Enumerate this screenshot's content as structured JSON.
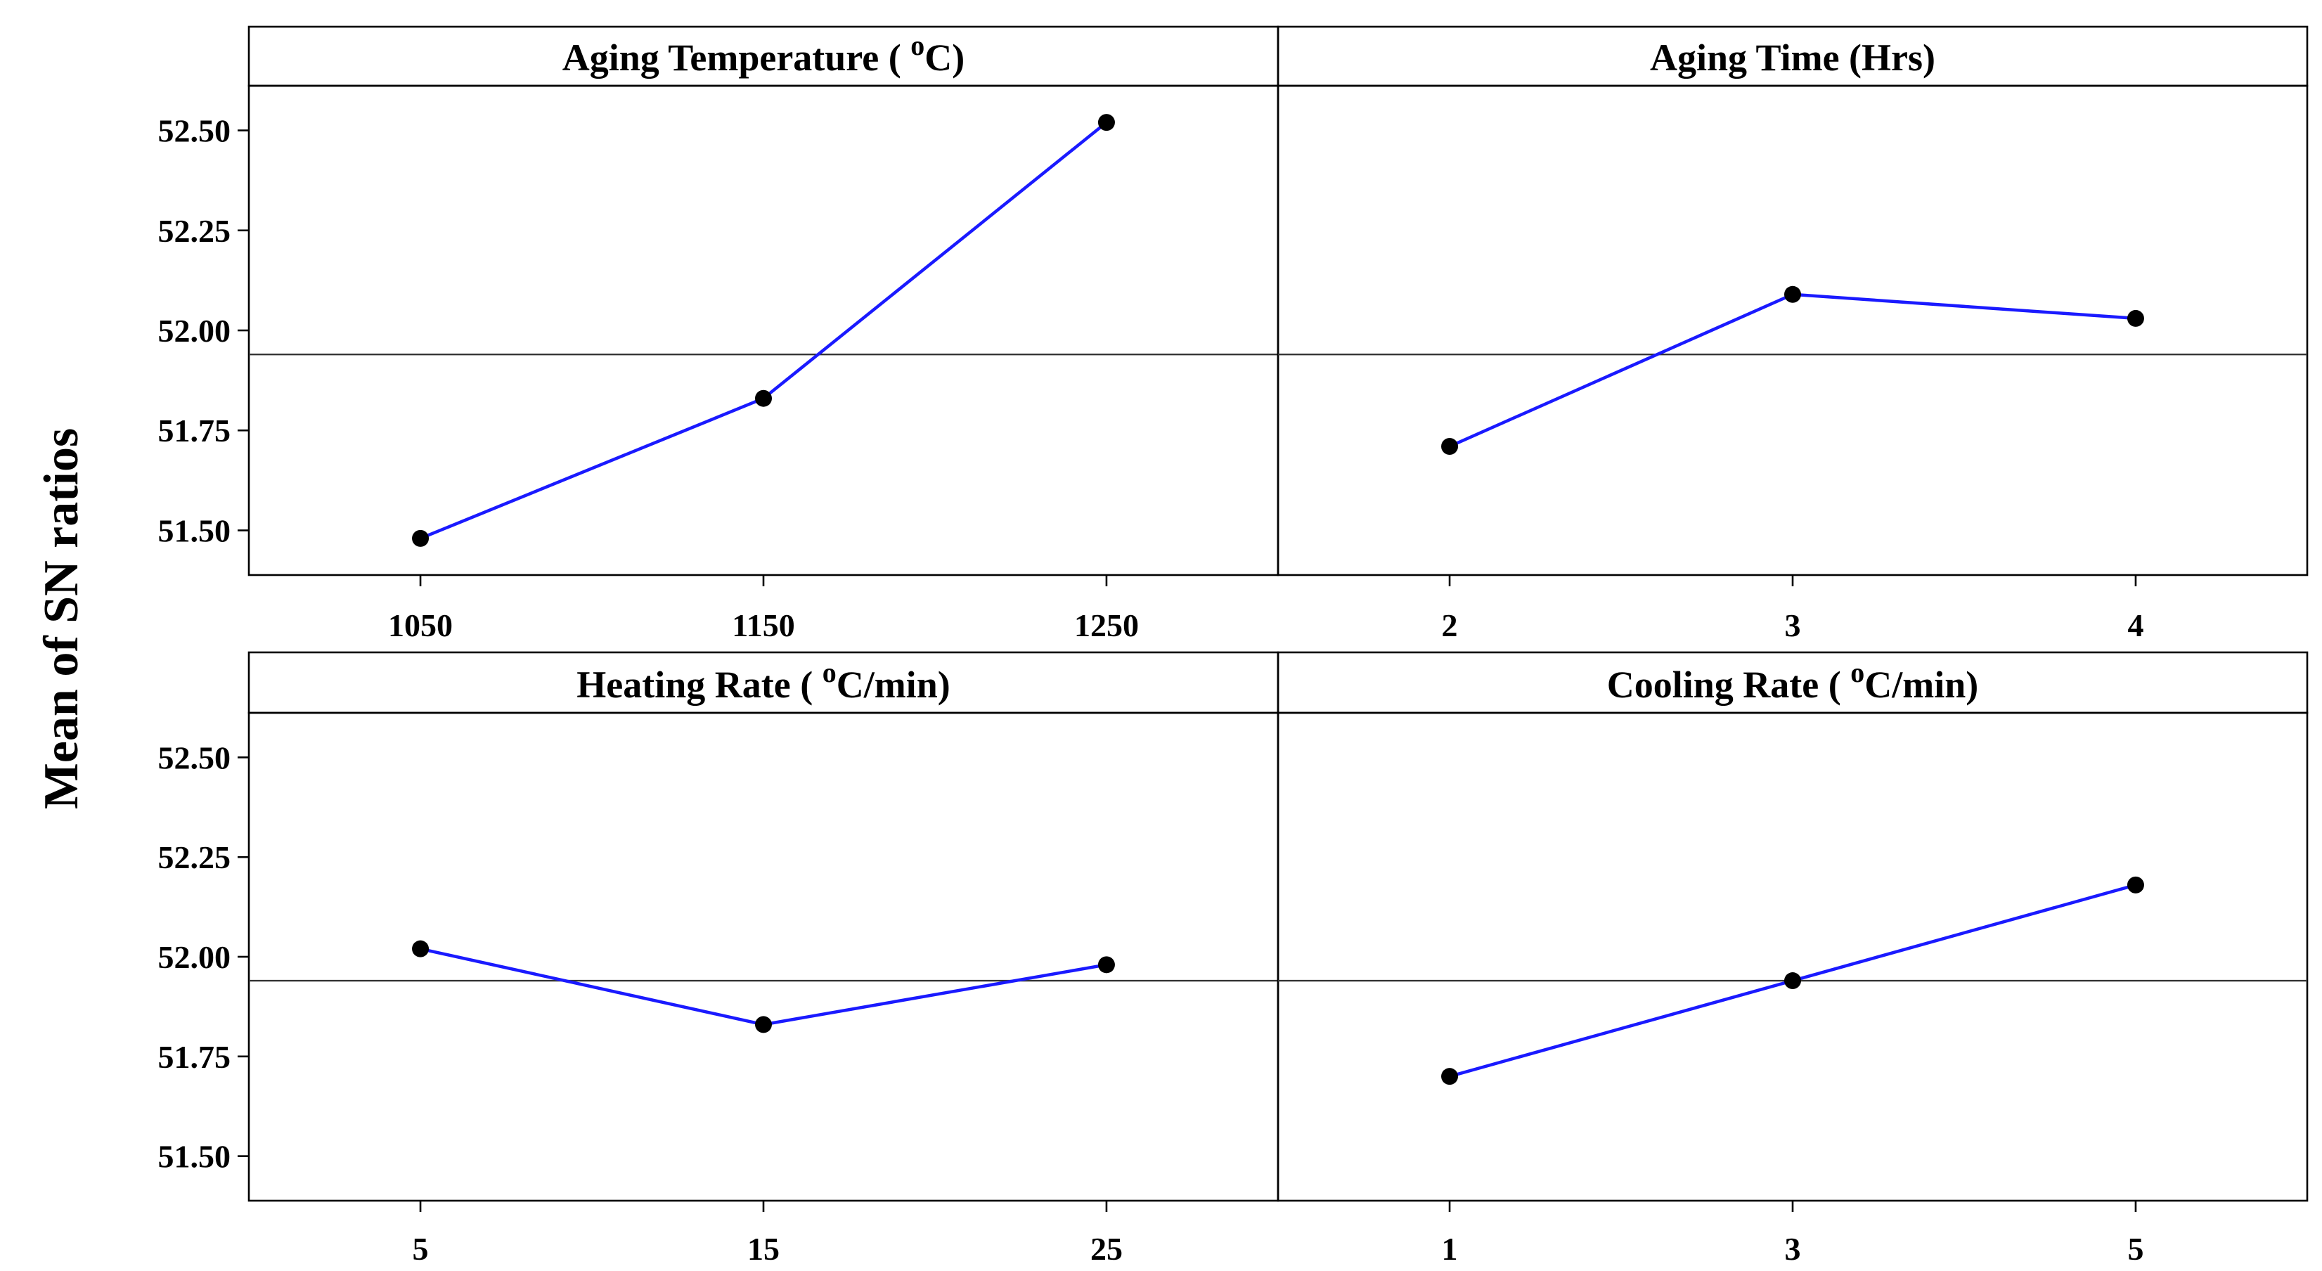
{
  "chart_data": {
    "type": "line",
    "ylabel": "Mean of SN ratios",
    "ylim": [
      51.42,
      52.58
    ],
    "yticks": [
      51.5,
      51.75,
      52.0,
      52.25,
      52.5
    ],
    "yticks_labels": [
      "51.50",
      "51.75",
      "52.00",
      "52.25",
      "52.50"
    ],
    "reference_line": 51.94,
    "panels": [
      {
        "title": "Aging Temperature ( ⁰C)",
        "title_main": "Aging Temperature ( ",
        "title_sup": "o",
        "title_end": "C)",
        "categories": [
          "1050",
          "1150",
          "1250"
        ],
        "values": [
          51.48,
          51.83,
          52.52
        ]
      },
      {
        "title": "Aging Time (Hrs)",
        "title_main": "Aging Time (Hrs)",
        "title_sup": "",
        "title_end": "",
        "categories": [
          "2",
          "3",
          "4"
        ],
        "values": [
          51.71,
          52.09,
          52.03
        ]
      },
      {
        "title": "Heating Rate ( ⁰C/min)",
        "title_main": "Heating Rate ( ",
        "title_sup": "o",
        "title_end": "C/min)",
        "categories": [
          "5",
          "15",
          "25"
        ],
        "values": [
          52.02,
          51.83,
          51.98
        ]
      },
      {
        "title": "Cooling Rate ( ⁰C/min)",
        "title_main": "Cooling Rate ( ",
        "title_sup": "o",
        "title_end": "C/min)",
        "categories": [
          "1",
          "3",
          "5"
        ],
        "values": [
          51.7,
          51.94,
          52.18
        ]
      }
    ],
    "colors": {
      "line": "#1a1aff",
      "marker": "#000000",
      "reference": "#333333"
    }
  }
}
